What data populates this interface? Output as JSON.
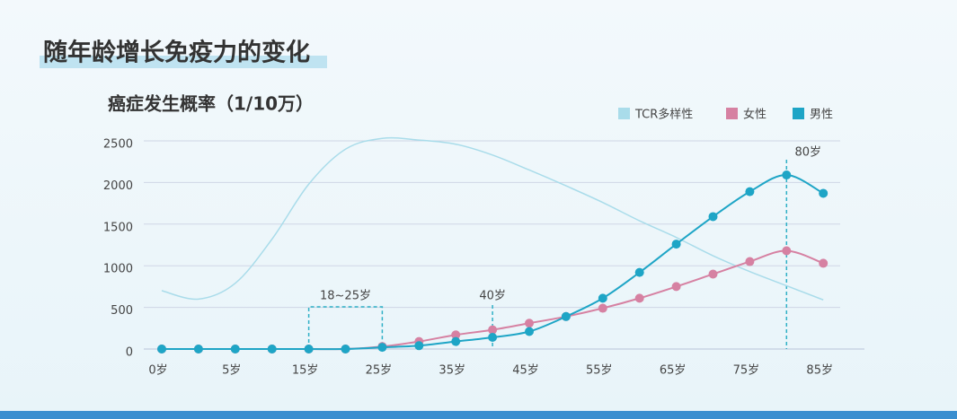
{
  "title": "随年龄增长免疫力的变化",
  "chart_data": {
    "type": "line",
    "title": "癌症发生概率（1/10万）",
    "categories": [
      "0岁",
      null,
      "5岁",
      null,
      "15岁",
      null,
      "25岁",
      null,
      "35岁",
      null,
      "45岁",
      null,
      "55岁",
      null,
      "65岁",
      null,
      "75岁",
      null,
      "85岁"
    ],
    "series": [
      {
        "name": "TCR多样性",
        "color": "#a9dcea",
        "markers": false,
        "values": [
          700,
          600,
          790,
          1320,
          1980,
          2400,
          2530,
          2510,
          2460,
          2330,
          2150,
          1960,
          1760,
          1540,
          1340,
          1120,
          930,
          760,
          590
        ]
      },
      {
        "name": "女性",
        "color": "#d681a2",
        "markers": true,
        "values": [
          0,
          0,
          0,
          0,
          0,
          0,
          30,
          90,
          170,
          230,
          310,
          390,
          490,
          610,
          750,
          900,
          1050,
          1180,
          1030
        ]
      },
      {
        "name": "男性",
        "color": "#1ea5c6",
        "markers": true,
        "values": [
          0,
          0,
          0,
          0,
          0,
          0,
          20,
          40,
          90,
          140,
          210,
          390,
          610,
          920,
          1260,
          1590,
          1890,
          2090,
          1870
        ]
      }
    ],
    "ylim": [
      0,
      2500
    ],
    "yticks": [
      0,
      500,
      1000,
      1500,
      2000,
      2500
    ],
    "grid": true,
    "legend": "top-right",
    "annotations": [
      "18~25岁",
      "40岁",
      "80岁"
    ]
  }
}
